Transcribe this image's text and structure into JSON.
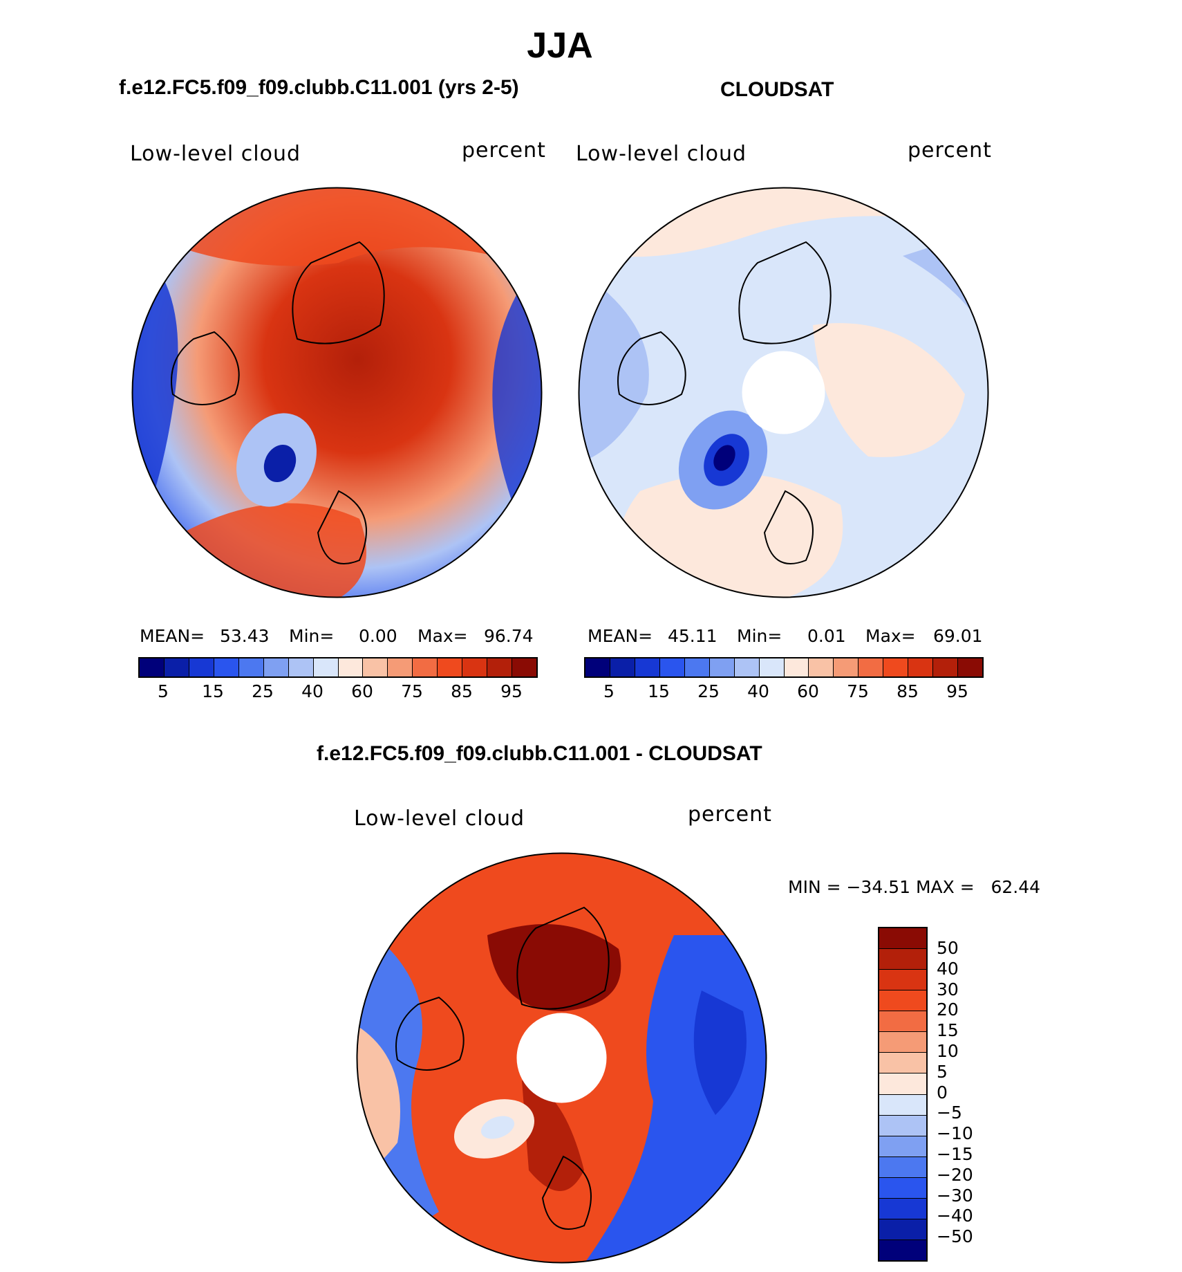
{
  "page": {
    "title": "JJA"
  },
  "panels": [
    {
      "id": "model",
      "title": "f.e12.FC5.f09_f09.clubb.C11.001 (yrs 2-5)",
      "left_label": "Low-level cloud",
      "right_label": "percent",
      "stats": {
        "mean_label": "MEAN=",
        "mean": "53.43",
        "min_label": "Min=",
        "min": "0.00",
        "max_label": "Max=",
        "max": "96.74"
      }
    },
    {
      "id": "obs",
      "title": "CLOUDSAT",
      "left_label": "Low-level cloud",
      "right_label": "percent",
      "stats": {
        "mean_label": "MEAN=",
        "mean": "45.11",
        "min_label": "Min=",
        "min": "0.01",
        "max_label": "Max=",
        "max": "69.01"
      }
    },
    {
      "id": "diff",
      "title": "f.e12.FC5.f09_f09.clubb.C11.001 - CLOUDSAT",
      "left_label": "Low-level cloud",
      "right_label": "percent",
      "stats": {
        "text": "MIN = −34.51 MAX =   62.44"
      }
    }
  ],
  "colorbars": {
    "absolute": {
      "ticks": [
        "5",
        "15",
        "25",
        "40",
        "60",
        "75",
        "85",
        "95"
      ],
      "colors": [
        "#00007a",
        "#0a1fa8",
        "#1738d4",
        "#2a55ee",
        "#4c78f0",
        "#7fa0f2",
        "#adc3f5",
        "#d9e6fa",
        "#fde8dc",
        "#f9c2a6",
        "#f59b76",
        "#f26c43",
        "#ef4a1e",
        "#d93412",
        "#b3200a",
        "#8a0b04"
      ]
    },
    "difference": {
      "ticks": [
        "50",
        "40",
        "30",
        "20",
        "15",
        "10",
        "5",
        "0",
        "−5",
        "−10",
        "−15",
        "−20",
        "−30",
        "−40",
        "−50"
      ],
      "colors": [
        "#8a0b04",
        "#b3200a",
        "#d93412",
        "#ef4a1e",
        "#f26c43",
        "#f59b76",
        "#f9c2a6",
        "#fde8dc",
        "#d9e6fa",
        "#adc3f5",
        "#7fa0f2",
        "#4c78f0",
        "#2a55ee",
        "#1738d4",
        "#0a1fa8",
        "#00007a"
      ]
    }
  }
}
